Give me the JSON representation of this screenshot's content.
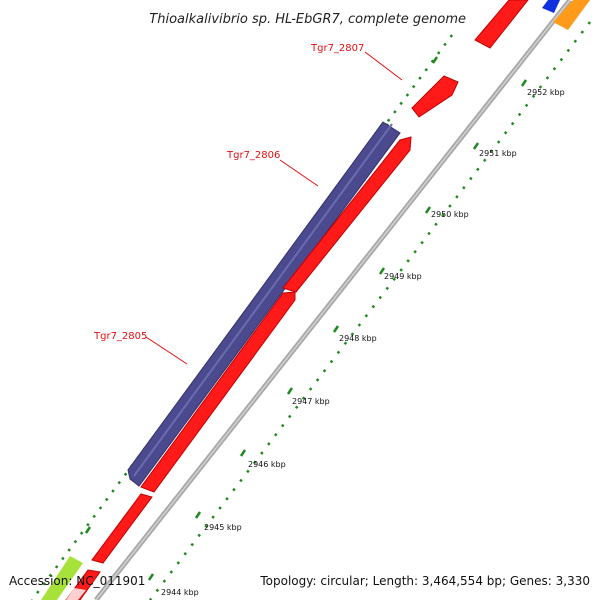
{
  "title": "Thioalkalivibrio sp. HL-EbGR7, complete genome",
  "footer": {
    "accession": "Accession: NC_011901",
    "topology": "Topology: circular; Length: 3,464,554 bp; Genes: 3,330"
  },
  "genes": [
    {
      "label": "Tgr7_2807"
    },
    {
      "label": "Tgr7_2806"
    },
    {
      "label": "Tgr7_2805"
    }
  ],
  "scale_ticks": [
    {
      "label": "2944 kbp"
    },
    {
      "label": "2945 kbp"
    },
    {
      "label": "2946 kbp"
    },
    {
      "label": "2947 kbp"
    },
    {
      "label": "2948 kbp"
    },
    {
      "label": "2949 kbp"
    },
    {
      "label": "2950 kbp"
    },
    {
      "label": "2951 kbp"
    },
    {
      "label": "2952 kbp"
    }
  ],
  "colors": {
    "cds_forward": "#ff1a1a",
    "cds_reverse": "#4b4a8f",
    "backbone": "#a8a8a8",
    "tick": "#1f8a1f",
    "label_red": "#e01010",
    "other_blue": "#1030e0",
    "other_orange": "#ff9a1a",
    "other_green": "#a6e23a"
  }
}
